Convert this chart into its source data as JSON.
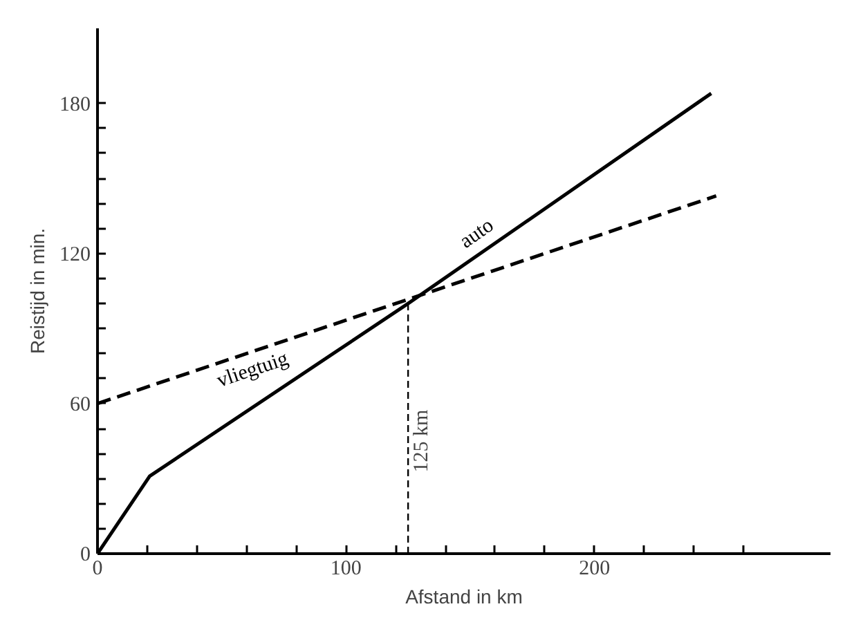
{
  "chart_data": {
    "type": "line",
    "xlabel": "Afstand in km",
    "ylabel": "Reistijd in min.",
    "xlim": [
      0,
      295
    ],
    "ylim": [
      0,
      210
    ],
    "xticks": [
      0,
      {
        "value": 20,
        "label": null
      },
      {
        "value": 40,
        "label": null
      },
      {
        "value": 60,
        "label": null
      },
      {
        "value": 80,
        "label": null
      },
      100,
      {
        "value": 120,
        "label": null
      },
      {
        "value": 140,
        "label": null
      },
      {
        "value": 160,
        "label": null
      },
      {
        "value": 180,
        "label": null
      },
      200,
      {
        "value": 220,
        "label": null
      },
      {
        "value": 240,
        "label": null
      },
      {
        "value": 260,
        "label": null
      }
    ],
    "yticks": [
      0,
      {
        "value": 10,
        "label": null
      },
      {
        "value": 20,
        "label": null
      },
      {
        "value": 30,
        "label": null
      },
      {
        "value": 40,
        "label": null
      },
      {
        "value": 50,
        "label": null
      },
      60,
      {
        "value": 70,
        "label": null
      },
      {
        "value": 80,
        "label": null
      },
      {
        "value": 90,
        "label": null
      },
      {
        "value": 100,
        "label": null
      },
      {
        "value": 110,
        "label": null
      },
      120,
      {
        "value": 130,
        "label": null
      },
      {
        "value": 140,
        "label": null
      },
      {
        "value": 150,
        "label": null
      },
      {
        "value": 160,
        "label": null
      },
      {
        "value": 170,
        "label": null
      },
      180
    ],
    "grid": false,
    "legend": false,
    "marker": "none",
    "series": [
      {
        "name": "auto",
        "color": "#000000",
        "x": [
          0,
          21,
          125,
          247
        ],
        "values": [
          0,
          31,
          100,
          184
        ],
        "line_style": "solid"
      },
      {
        "name": "vliegtuig",
        "color": "#000000",
        "x": [
          0,
          249
        ],
        "values": [
          60,
          143
        ],
        "line_style": "dashed"
      },
      {
        "color": "#000000",
        "x": [
          125,
          125
        ],
        "values": [
          0,
          100
        ],
        "line_style": "dashed"
      }
    ],
    "annotations": [
      {
        "text": "125 km",
        "x": 125,
        "y": 45
      }
    ]
  }
}
